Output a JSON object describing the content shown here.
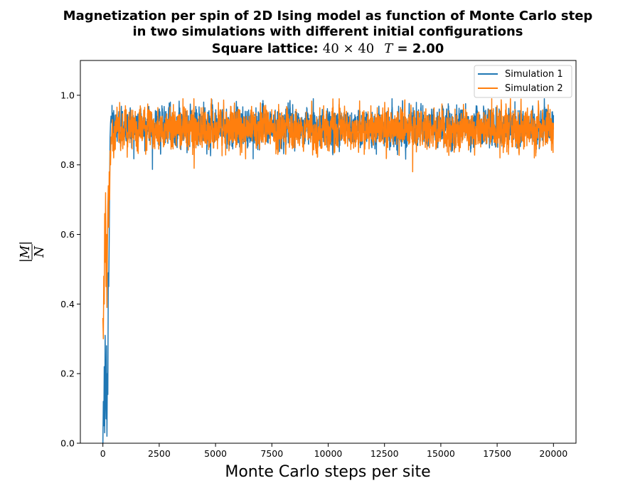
{
  "chart_data": {
    "type": "line",
    "title_lines": [
      "Magnetization per spin of 2D Ising model as function of Monte Carlo step",
      "in two simulations with different initial configurations"
    ],
    "subtitle": {
      "label": "Square lattice: ",
      "lattice": "40 × 40",
      "temp_var": "T",
      "temp_value": " = 2.00"
    },
    "xlabel": "Monte Carlo steps per site",
    "ylabel": {
      "numerator": "|M|",
      "denominator": "N"
    },
    "xlim": [
      -1000,
      21000
    ],
    "ylim": [
      0,
      1.1
    ],
    "xticks": [
      0,
      2500,
      5000,
      7500,
      10000,
      12500,
      15000,
      17500,
      20000
    ],
    "yticks": [
      0.0,
      0.2,
      0.4,
      0.6,
      0.8,
      1.0
    ],
    "grid": false,
    "legend_position": "upper right",
    "series": [
      {
        "name": "Simulation 1",
        "color": "#1f77b4",
        "points": [
          [
            0,
            0.0
          ],
          [
            20,
            0.12
          ],
          [
            40,
            0.05
          ],
          [
            60,
            0.22
          ],
          [
            80,
            0.03
          ],
          [
            100,
            0.31
          ],
          [
            120,
            0.15
          ],
          [
            140,
            0.07
          ],
          [
            160,
            0.28
          ],
          [
            180,
            0.02
          ],
          [
            200,
            0.2
          ],
          [
            220,
            0.14
          ],
          [
            240,
            0.49
          ],
          [
            260,
            0.45
          ],
          [
            280,
            0.58
          ],
          [
            300,
            0.75
          ],
          [
            320,
            0.88
          ],
          [
            340,
            0.92
          ],
          [
            360,
            0.94
          ],
          [
            380,
            0.93
          ],
          [
            400,
            0.92
          ]
        ],
        "steady": {
          "start": 400,
          "end": 20000,
          "mean": 0.91,
          "std": 0.022
        }
      },
      {
        "name": "Simulation 2",
        "color": "#ff7f0e",
        "points": [
          [
            0,
            0.36
          ],
          [
            20,
            0.3
          ],
          [
            40,
            0.48
          ],
          [
            60,
            0.4
          ],
          [
            80,
            0.66
          ],
          [
            100,
            0.52
          ],
          [
            120,
            0.72
          ],
          [
            140,
            0.45
          ],
          [
            160,
            0.6
          ],
          [
            180,
            0.39
          ],
          [
            200,
            0.55
          ],
          [
            220,
            0.68
          ],
          [
            240,
            0.74
          ],
          [
            260,
            0.62
          ],
          [
            280,
            0.78
          ],
          [
            300,
            0.7
          ],
          [
            320,
            0.84
          ],
          [
            340,
            0.8
          ],
          [
            360,
            0.88
          ],
          [
            380,
            0.86
          ],
          [
            400,
            0.9
          ],
          [
            420,
            0.93
          ],
          [
            440,
            0.84
          ],
          [
            460,
            0.89
          ],
          [
            480,
            0.82
          ],
          [
            500,
            0.91
          ]
        ],
        "steady": {
          "start": 500,
          "end": 20000,
          "mean": 0.905,
          "std": 0.024
        },
        "spikes": [
          [
            1000,
            0.97
          ],
          [
            1900,
            0.83
          ],
          [
            4050,
            0.79
          ],
          [
            5900,
            0.85
          ],
          [
            9800,
            0.97
          ],
          [
            11600,
            0.83
          ],
          [
            13750,
            0.78
          ],
          [
            18000,
            0.83
          ],
          [
            19150,
            0.82
          ]
        ]
      }
    ]
  }
}
